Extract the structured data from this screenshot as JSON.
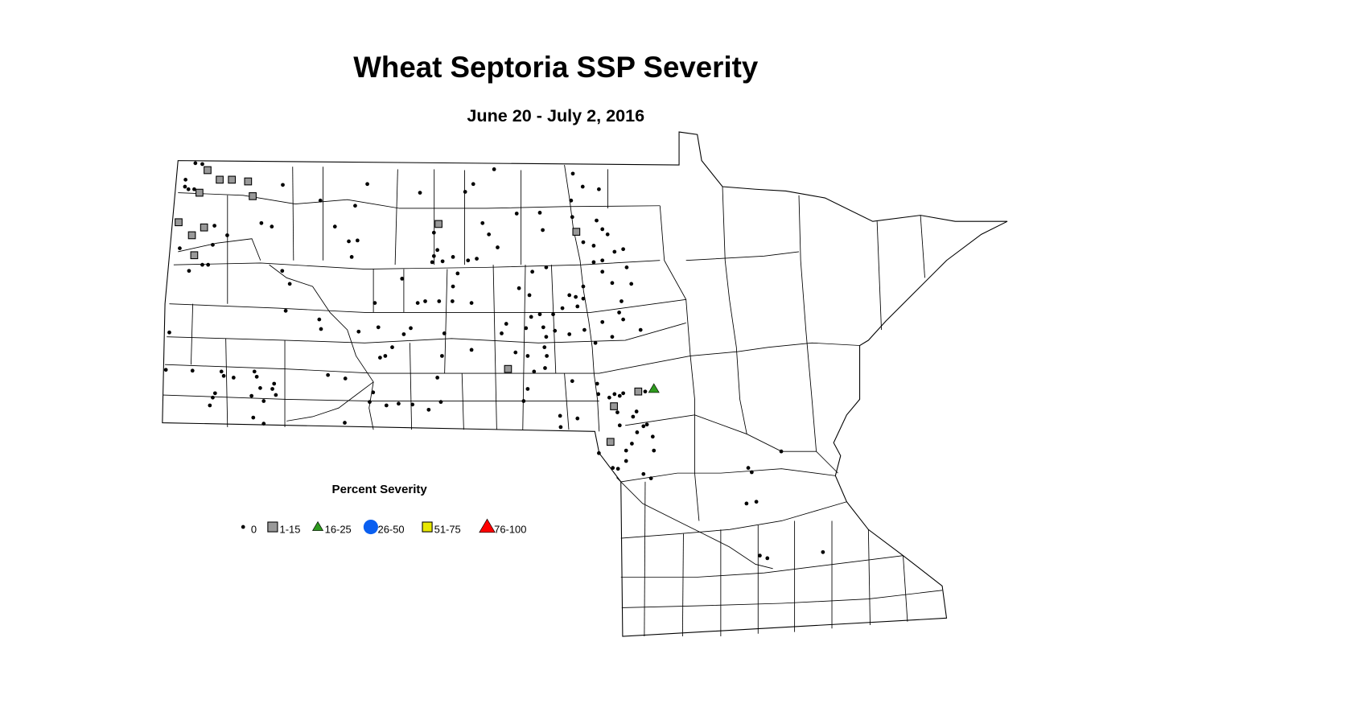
{
  "title": "Wheat Septoria SSP Severity",
  "subtitle": "June 20 - July 2, 2016",
  "legend": {
    "title": "Percent Severity",
    "items": [
      {
        "label": "0",
        "shape": "dot",
        "color": "#000000"
      },
      {
        "label": "1-15",
        "shape": "square",
        "color": "#999999"
      },
      {
        "label": "16-25",
        "shape": "triangle",
        "color": "#2e9a1e"
      },
      {
        "label": "26-50",
        "shape": "circle",
        "color": "#0a5ff0"
      },
      {
        "label": "51-75",
        "shape": "square",
        "color": "#e8e800"
      },
      {
        "label": "76-100",
        "shape": "triangle",
        "color": "#ff0000"
      }
    ]
  },
  "observations": {
    "0": [
      [
        -103.55,
        48.99
      ],
      [
        -103.43,
        48.98
      ],
      [
        -103.72,
        48.8
      ],
      [
        -103.73,
        48.72
      ],
      [
        -103.67,
        48.69
      ],
      [
        -103.57,
        48.69
      ],
      [
        -103.22,
        48.27
      ],
      [
        -103.0,
        48.16
      ],
      [
        -103.25,
        48.05
      ],
      [
        -103.66,
        47.75
      ],
      [
        -103.43,
        47.82
      ],
      [
        -103.33,
        47.82
      ],
      [
        -103.82,
        48.01
      ],
      [
        -103.42,
        48.25
      ],
      [
        -102.04,
        48.74
      ],
      [
        -101.39,
        48.56
      ],
      [
        -100.79,
        48.5
      ],
      [
        -100.58,
        48.75
      ],
      [
        -99.67,
        48.65
      ],
      [
        -98.75,
        48.75
      ],
      [
        -98.89,
        48.66
      ],
      [
        -98.39,
        48.92
      ],
      [
        -97.03,
        48.87
      ],
      [
        -96.86,
        48.72
      ],
      [
        -96.58,
        48.69
      ],
      [
        -97.06,
        48.56
      ],
      [
        -97.04,
        48.37
      ],
      [
        -102.41,
        48.3
      ],
      [
        -102.23,
        48.26
      ],
      [
        -101.14,
        48.26
      ],
      [
        -100.9,
        48.09
      ],
      [
        -100.75,
        48.1
      ],
      [
        -100.85,
        47.91
      ],
      [
        -99.43,
        48.19
      ],
      [
        -99.43,
        47.92
      ],
      [
        -99.37,
        47.99
      ],
      [
        -99.46,
        47.85
      ],
      [
        -99.28,
        47.86
      ],
      [
        -99.1,
        47.91
      ],
      [
        -98.84,
        47.87
      ],
      [
        -98.69,
        47.89
      ],
      [
        -98.59,
        48.3
      ],
      [
        -98.48,
        48.17
      ],
      [
        -98.33,
        48.02
      ],
      [
        -98.0,
        48.41
      ],
      [
        -97.6,
        48.42
      ],
      [
        -97.55,
        48.22
      ],
      [
        -96.62,
        48.33
      ],
      [
        -96.52,
        48.23
      ],
      [
        -96.43,
        48.17
      ],
      [
        -96.85,
        48.08
      ],
      [
        -96.67,
        48.04
      ],
      [
        -96.67,
        47.85
      ],
      [
        -96.52,
        47.87
      ],
      [
        -96.52,
        47.74
      ],
      [
        -96.31,
        47.97
      ],
      [
        -96.16,
        48.0
      ],
      [
        -96.1,
        47.79
      ],
      [
        -96.02,
        47.6
      ],
      [
        -96.35,
        47.61
      ],
      [
        -96.85,
        47.57
      ],
      [
        -96.85,
        47.43
      ],
      [
        -96.95,
        47.34
      ],
      [
        -96.98,
        47.45
      ],
      [
        -97.09,
        47.47
      ],
      [
        -97.21,
        47.32
      ],
      [
        -97.49,
        47.79
      ],
      [
        -97.73,
        47.74
      ],
      [
        -97.96,
        47.55
      ],
      [
        -97.75,
        47.22
      ],
      [
        -97.6,
        47.25
      ],
      [
        -97.37,
        47.25
      ],
      [
        -97.78,
        47.47
      ],
      [
        -97.84,
        47.09
      ],
      [
        -97.54,
        47.1
      ],
      [
        -97.34,
        47.06
      ],
      [
        -97.49,
        46.99
      ],
      [
        -98.18,
        47.14
      ],
      [
        -98.26,
        47.03
      ],
      [
        -98.02,
        46.81
      ],
      [
        -97.81,
        46.77
      ],
      [
        -97.52,
        46.87
      ],
      [
        -97.48,
        46.77
      ],
      [
        -97.51,
        46.63
      ],
      [
        -97.7,
        46.59
      ],
      [
        -97.81,
        46.39
      ],
      [
        -97.09,
        47.02
      ],
      [
        -96.83,
        47.07
      ],
      [
        -96.64,
        46.92
      ],
      [
        -96.52,
        47.16
      ],
      [
        -96.23,
        47.27
      ],
      [
        -96.16,
        47.19
      ],
      [
        -95.86,
        47.07
      ],
      [
        -96.19,
        47.4
      ],
      [
        -96.35,
        46.99
      ],
      [
        -101.92,
        47.6
      ],
      [
        -102.05,
        47.75
      ],
      [
        -101.99,
        47.29
      ],
      [
        -101.41,
        47.19
      ],
      [
        -101.38,
        47.08
      ],
      [
        -100.73,
        47.05
      ],
      [
        -100.39,
        47.1
      ],
      [
        -100.27,
        46.77
      ],
      [
        -100.36,
        46.75
      ],
      [
        -100.15,
        46.87
      ],
      [
        -99.83,
        47.09
      ],
      [
        -99.95,
        47.02
      ],
      [
        -99.25,
        47.03
      ],
      [
        -99.29,
        46.77
      ],
      [
        -99.37,
        46.52
      ],
      [
        -98.78,
        46.84
      ],
      [
        -99.71,
        47.38
      ],
      [
        -99.58,
        47.4
      ],
      [
        -99.34,
        47.4
      ],
      [
        -99.11,
        47.4
      ],
      [
        -98.78,
        47.38
      ],
      [
        -99.1,
        47.57
      ],
      [
        -99.02,
        47.72
      ],
      [
        -99.98,
        47.66
      ],
      [
        -100.45,
        47.38
      ],
      [
        -104.0,
        47.04
      ],
      [
        -104.06,
        46.61
      ],
      [
        -103.6,
        46.6
      ],
      [
        -103.3,
        46.2
      ],
      [
        -103.25,
        46.29
      ],
      [
        -103.21,
        46.34
      ],
      [
        -103.1,
        46.59
      ],
      [
        -103.06,
        46.54
      ],
      [
        -102.89,
        46.52
      ],
      [
        -102.53,
        46.59
      ],
      [
        -102.49,
        46.53
      ],
      [
        -102.43,
        46.4
      ],
      [
        -102.37,
        46.25
      ],
      [
        -102.19,
        46.45
      ],
      [
        -102.16,
        46.32
      ],
      [
        -102.58,
        46.31
      ],
      [
        -102.22,
        46.39
      ],
      [
        -102.55,
        46.06
      ],
      [
        -102.37,
        45.99
      ],
      [
        -101.26,
        46.55
      ],
      [
        -100.96,
        46.51
      ],
      [
        -100.97,
        46.0
      ],
      [
        -100.48,
        46.35
      ],
      [
        -100.54,
        46.24
      ],
      [
        -100.25,
        46.2
      ],
      [
        -100.04,
        46.22
      ],
      [
        -99.8,
        46.21
      ],
      [
        -99.52,
        46.15
      ],
      [
        -99.31,
        46.24
      ],
      [
        -97.88,
        46.25
      ],
      [
        -97.25,
        46.08
      ],
      [
        -97.24,
        45.95
      ],
      [
        -96.95,
        46.05
      ],
      [
        -97.04,
        46.48
      ],
      [
        -96.61,
        46.45
      ],
      [
        -96.59,
        46.33
      ],
      [
        -96.4,
        46.29
      ],
      [
        -96.31,
        46.33
      ],
      [
        -96.22,
        46.31
      ],
      [
        -96.16,
        46.34
      ],
      [
        -96.26,
        46.12
      ],
      [
        -96.22,
        45.97
      ],
      [
        -95.99,
        46.07
      ],
      [
        -95.93,
        46.13
      ],
      [
        -95.92,
        45.89
      ],
      [
        -95.81,
        45.96
      ],
      [
        -95.75,
        45.98
      ],
      [
        -95.65,
        45.84
      ],
      [
        -96.01,
        45.76
      ],
      [
        -95.78,
        46.36
      ],
      [
        -96.58,
        45.65
      ],
      [
        -96.34,
        45.48
      ],
      [
        -96.25,
        45.47
      ],
      [
        -96.11,
        45.56
      ],
      [
        -95.81,
        45.41
      ],
      [
        -95.68,
        45.36
      ],
      [
        -96.11,
        45.68
      ],
      [
        -95.63,
        45.68
      ],
      [
        -93.43,
        45.67
      ],
      [
        -94.0,
        45.48
      ],
      [
        -93.94,
        45.43
      ],
      [
        -94.03,
        45.07
      ],
      [
        -93.86,
        45.09
      ],
      [
        -93.8,
        44.47
      ],
      [
        -93.67,
        44.44
      ],
      [
        -92.71,
        44.51
      ]
    ],
    "1-15": [
      [
        -103.34,
        48.91
      ],
      [
        -103.13,
        48.8
      ],
      [
        -102.92,
        48.8
      ],
      [
        -102.64,
        48.78
      ],
      [
        -103.48,
        48.65
      ],
      [
        -102.56,
        48.61
      ],
      [
        -103.84,
        48.31
      ],
      [
        -103.4,
        48.25
      ],
      [
        -103.61,
        48.16
      ],
      [
        -103.57,
        47.93
      ],
      [
        -99.35,
        48.29
      ],
      [
        -96.97,
        48.2
      ],
      [
        -98.15,
        46.62
      ],
      [
        -96.32,
        46.19
      ],
      [
        -95.9,
        46.36
      ],
      [
        -96.38,
        45.78
      ]
    ],
    "16-25": [
      [
        -95.63,
        46.39
      ]
    ],
    "26-50": [],
    "51-75": [],
    "76-100": []
  }
}
